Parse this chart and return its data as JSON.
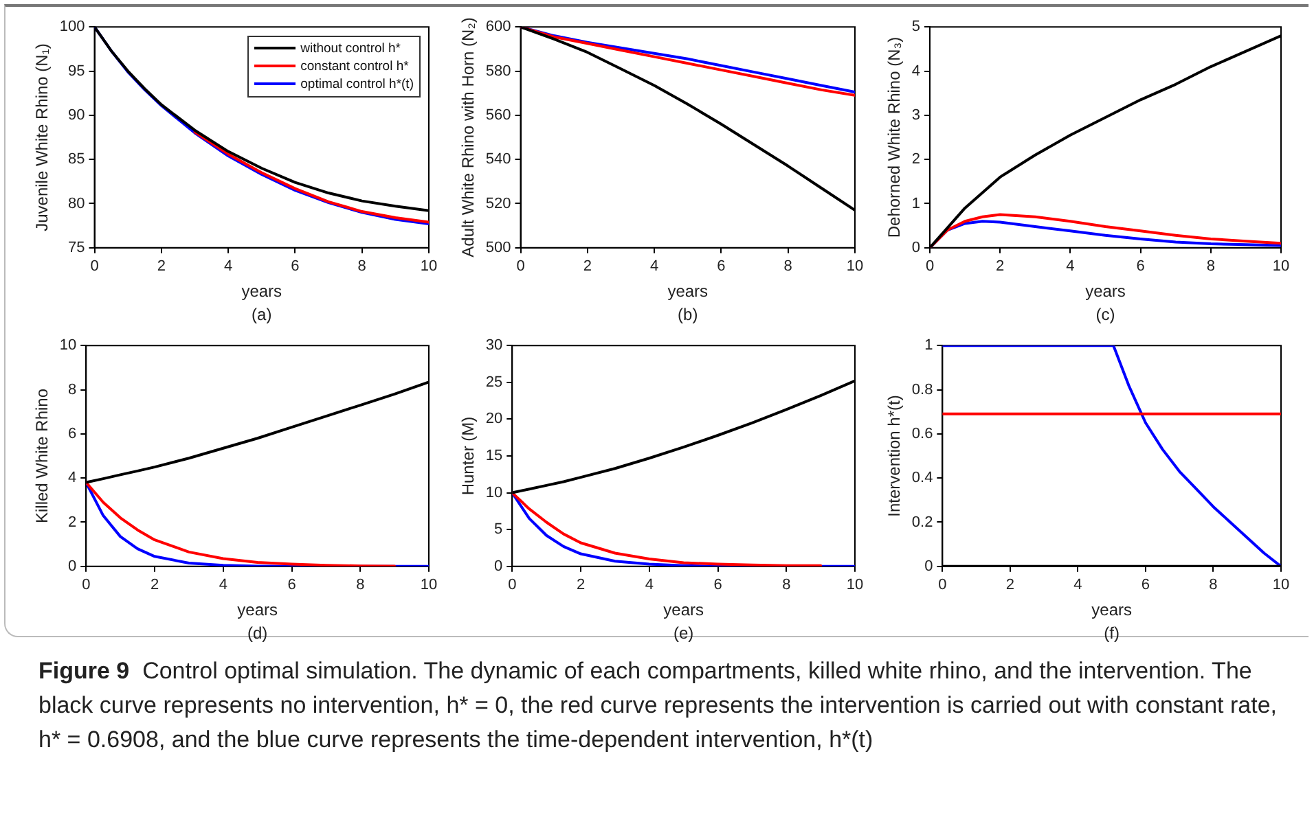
{
  "chart_data": [
    {
      "type": "line",
      "ylabel": "Juvenile White Rhino (N₁)",
      "xlabel": "years",
      "annotations": [
        "(a)"
      ],
      "x": [
        0,
        0.5,
        1,
        1.5,
        2,
        3,
        4,
        5,
        6,
        7,
        8,
        9,
        10
      ],
      "xlim": [
        0,
        10
      ],
      "xticks": [
        0,
        2,
        4,
        6,
        8,
        10
      ],
      "ylim": [
        75,
        100
      ],
      "yticks": [
        75,
        80,
        85,
        90,
        95,
        100
      ],
      "legend": "top right",
      "series": [
        {
          "name": "without control h*",
          "color": "#000000",
          "values": [
            100,
            97.3,
            95.0,
            93.0,
            91.2,
            88.3,
            85.9,
            84.0,
            82.4,
            81.2,
            80.3,
            79.7,
            79.2
          ]
        },
        {
          "name": "constant control h*",
          "color": "#ff0000",
          "x": [
            3,
            4,
            5,
            6,
            7,
            8,
            9,
            10
          ],
          "values": [
            88.1,
            85.6,
            83.5,
            81.7,
            80.2,
            79.1,
            78.4,
            77.9
          ]
        },
        {
          "name": "optimal control h*(t)",
          "color": "#0000ff",
          "values": [
            100,
            97.3,
            94.9,
            92.9,
            91.1,
            88.0,
            85.4,
            83.3,
            81.5,
            80.1,
            79.0,
            78.2,
            77.7
          ]
        }
      ]
    },
    {
      "type": "line",
      "ylabel": "Adult White Rhino with Horn (N₂)",
      "xlabel": "years",
      "annotations": [
        "(b)"
      ],
      "x": [
        0,
        1,
        2,
        3,
        4,
        5,
        6,
        7,
        8,
        9,
        10
      ],
      "xlim": [
        0,
        10
      ],
      "xticks": [
        0,
        2,
        4,
        6,
        8,
        10
      ],
      "ylim": [
        500,
        600
      ],
      "yticks": [
        500,
        520,
        540,
        560,
        580,
        600
      ],
      "series": [
        {
          "color": "#000000",
          "values": [
            600,
            594.5,
            588.5,
            581,
            573.5,
            565,
            556,
            546.5,
            537,
            527,
            517
          ]
        },
        {
          "color": "#ff0000",
          "values": [
            600,
            595.5,
            592.5,
            589.5,
            586.5,
            583.5,
            580.5,
            577.5,
            574.5,
            571.5,
            569
          ]
        },
        {
          "color": "#0000ff",
          "values": [
            600,
            596,
            593,
            590.5,
            588,
            585.5,
            582.5,
            579.5,
            576.5,
            573.5,
            570.5
          ]
        }
      ]
    },
    {
      "type": "line",
      "ylabel": "Dehorned White Rhino (N₃)",
      "xlabel": "years",
      "annotations": [
        "(c)"
      ],
      "x": [
        0,
        0.5,
        1,
        1.5,
        2,
        3,
        4,
        5,
        6,
        7,
        8,
        9,
        10
      ],
      "xlim": [
        0,
        10
      ],
      "xticks": [
        0,
        2,
        4,
        6,
        8,
        10
      ],
      "ylim": [
        0,
        5
      ],
      "yticks": [
        0,
        1,
        2,
        3,
        4,
        5
      ],
      "series": [
        {
          "color": "#000000",
          "values": [
            0,
            0.45,
            0.9,
            1.25,
            1.6,
            2.1,
            2.55,
            2.95,
            3.35,
            3.7,
            4.1,
            4.45,
            4.8
          ]
        },
        {
          "color": "#ff0000",
          "values": [
            0,
            0.4,
            0.6,
            0.7,
            0.75,
            0.7,
            0.6,
            0.48,
            0.38,
            0.28,
            0.2,
            0.15,
            0.1
          ]
        },
        {
          "color": "#0000ff",
          "values": [
            0,
            0.4,
            0.55,
            0.6,
            0.58,
            0.48,
            0.38,
            0.28,
            0.2,
            0.13,
            0.09,
            0.07,
            0.05
          ]
        }
      ]
    },
    {
      "type": "line",
      "ylabel": "Killed White Rhino",
      "xlabel": "years",
      "annotations": [
        "(d)"
      ],
      "x": [
        0,
        0.5,
        1,
        1.5,
        2,
        3,
        4,
        5,
        6,
        7,
        8,
        9,
        10
      ],
      "xlim": [
        0,
        10
      ],
      "xticks": [
        0,
        2,
        4,
        6,
        8,
        10
      ],
      "ylim": [
        0,
        10
      ],
      "yticks": [
        0,
        2,
        4,
        6,
        8,
        10
      ],
      "series": [
        {
          "color": "#000000",
          "values": [
            3.8,
            3.97,
            4.15,
            4.32,
            4.5,
            4.9,
            5.35,
            5.8,
            6.3,
            6.8,
            7.3,
            7.8,
            8.35
          ]
        },
        {
          "color": "#ff0000",
          "values": [
            3.8,
            2.9,
            2.2,
            1.65,
            1.2,
            0.65,
            0.35,
            0.18,
            0.1,
            0.05,
            0.02,
            0.01,
            null
          ]
        },
        {
          "color": "#0000ff",
          "values": [
            3.8,
            2.3,
            1.35,
            0.8,
            0.45,
            0.15,
            0.05,
            0.01,
            0,
            0,
            0,
            0,
            0
          ]
        }
      ]
    },
    {
      "type": "line",
      "ylabel": "Hunter (M)",
      "xlabel": "years",
      "annotations": [
        "(e)"
      ],
      "x": [
        0,
        0.5,
        1,
        1.5,
        2,
        3,
        4,
        5,
        6,
        7,
        8,
        9,
        10
      ],
      "xlim": [
        0,
        10
      ],
      "xticks": [
        0,
        2,
        4,
        6,
        8,
        10
      ],
      "ylim": [
        0,
        30
      ],
      "yticks": [
        0,
        5,
        10,
        15,
        20,
        25,
        30
      ],
      "series": [
        {
          "color": "#000000",
          "values": [
            10,
            10.5,
            11,
            11.5,
            12.1,
            13.3,
            14.7,
            16.2,
            17.8,
            19.5,
            21.3,
            23.2,
            25.2
          ]
        },
        {
          "color": "#ff0000",
          "values": [
            10,
            7.8,
            6,
            4.4,
            3.2,
            1.8,
            1.0,
            0.5,
            0.3,
            0.2,
            0.1,
            0.1,
            null
          ]
        },
        {
          "color": "#0000ff",
          "values": [
            10,
            6.5,
            4.2,
            2.7,
            1.7,
            0.7,
            0.3,
            0.1,
            0,
            0,
            0,
            0,
            0
          ]
        }
      ]
    },
    {
      "type": "line",
      "ylabel": "Intervention h*(t)",
      "xlabel": "years",
      "annotations": [
        "(f)"
      ],
      "xlim": [
        0,
        10
      ],
      "xticks": [
        0,
        2,
        4,
        6,
        8,
        10
      ],
      "ylim": [
        0,
        1
      ],
      "yticks": [
        0,
        0.2,
        0.4,
        0.6,
        0.8,
        1
      ],
      "series": [
        {
          "color": "#000000",
          "x": [
            0,
            10
          ],
          "values": [
            0,
            0
          ]
        },
        {
          "color": "#ff0000",
          "x": [
            0,
            10
          ],
          "values": [
            0.6908,
            0.6908
          ]
        },
        {
          "color": "#0000ff",
          "x": [
            0,
            5.05,
            5.5,
            6,
            6.5,
            7,
            7.5,
            8,
            8.5,
            9,
            9.5,
            10
          ],
          "values": [
            1,
            1,
            0.82,
            0.65,
            0.53,
            0.43,
            0.35,
            0.27,
            0.2,
            0.13,
            0.06,
            0
          ]
        }
      ]
    },
    {
      "type": "other",
      "title": "Figure 9",
      "annotations": [
        "Control optimal simulation. The dynamic of each compartments, killed white rhino, and the intervention. The black curve represents no intervention, h* = 0, the red curve represents the intervention is carried out with constant rate, h* = 0.6908, and the blue curve represents the time-dependent intervention, h*(t)"
      ]
    }
  ]
}
